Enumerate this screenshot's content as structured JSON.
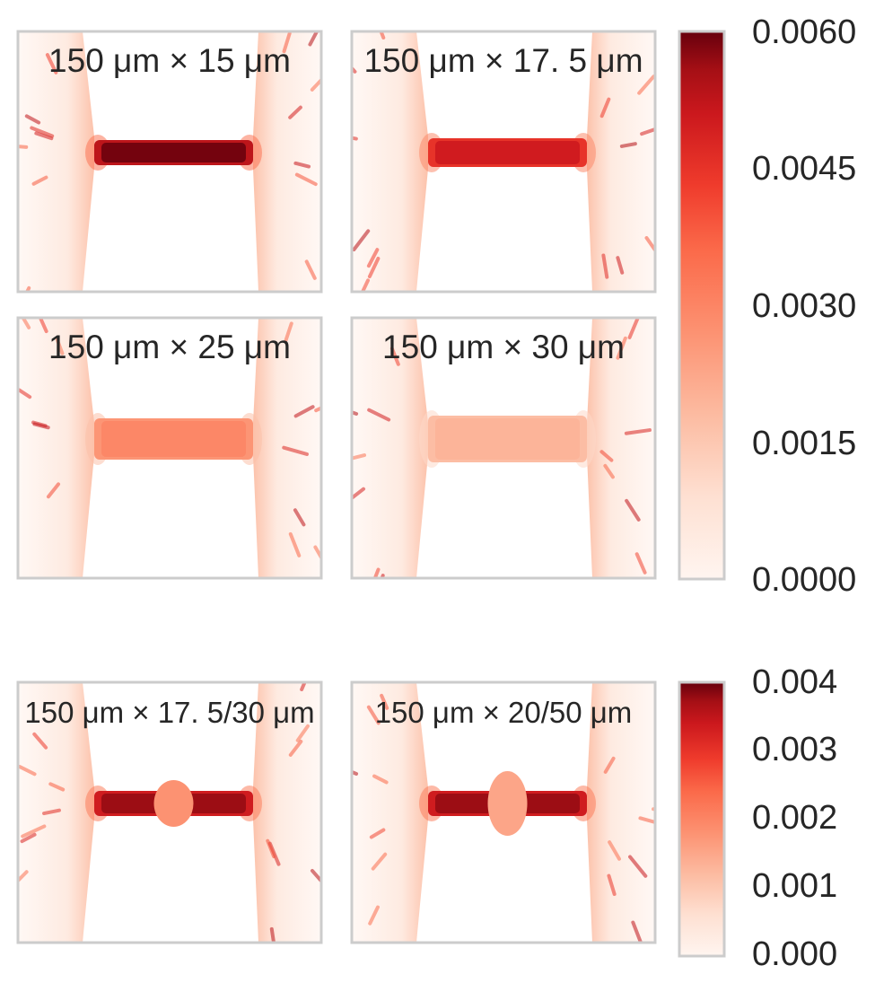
{
  "chart_data": [
    {
      "type": "heatmap",
      "description_panels": "top group: four channel geometries sharing one color scale",
      "colormap": "Reds",
      "vmin": 0.0,
      "vmax": 0.006,
      "panels": [
        {
          "title": "150 μm × 15 μm",
          "shape": "straight",
          "level": 1.0
        },
        {
          "title": "150 μm × 17. 5 μm",
          "shape": "straight",
          "level": 0.85
        },
        {
          "title": "150 μm × 25 μm",
          "shape": "straight",
          "level": 0.5
        },
        {
          "title": "150 μm × 30 μm",
          "shape": "straight",
          "level": 0.33
        }
      ],
      "colorbar": {
        "ticks": [
          "0.0060",
          "0.0045",
          "0.0030",
          "0.0015",
          "0.0000"
        ]
      }
    },
    {
      "type": "heatmap",
      "colormap": "Reds",
      "vmin": 0.0,
      "vmax": 0.004,
      "panels": [
        {
          "title": "150 μm × 17. 5/30 μm",
          "shape": "bulge",
          "level": 0.95,
          "bulge_level": 0.45
        },
        {
          "title": "150 μm × 20/50 μm",
          "shape": "bulge",
          "level": 0.95,
          "bulge_level": 0.38
        }
      ],
      "colorbar": {
        "ticks": [
          "0.004",
          "0.003",
          "0.002",
          "0.001",
          "0.000"
        ]
      }
    }
  ],
  "colors": {
    "frame": "#cccccc",
    "low": "#fff5f0",
    "mid": "#f34a36",
    "high": "#67000d"
  }
}
